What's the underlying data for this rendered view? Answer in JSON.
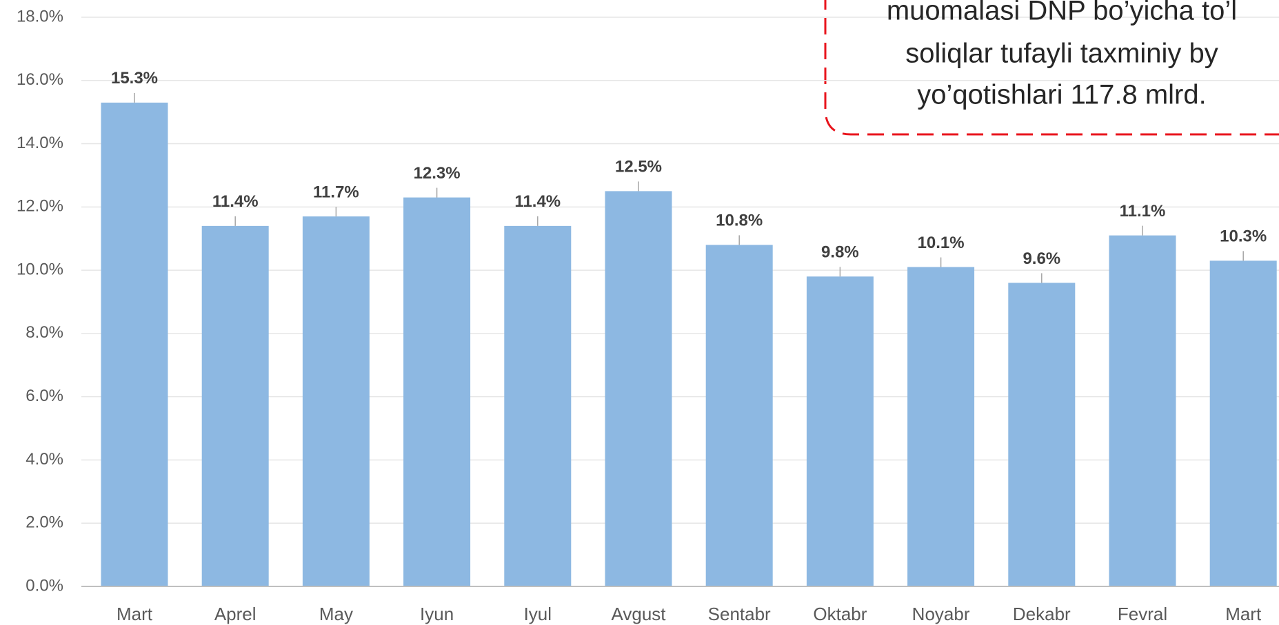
{
  "chart_data": {
    "type": "bar",
    "categories": [
      "Mart",
      "Aprel",
      "May",
      "Iyun",
      "Iyul",
      "Avgust",
      "Sentabr",
      "Oktabr",
      "Noyabr",
      "Dekabr",
      "Fevral",
      "Mart"
    ],
    "values": [
      15.3,
      11.4,
      11.7,
      12.3,
      11.4,
      12.5,
      10.8,
      9.8,
      10.1,
      9.6,
      11.1,
      10.3
    ],
    "value_labels": [
      "15.3%",
      "11.4%",
      "11.7%",
      "12.3%",
      "11.4%",
      "12.5%",
      "10.8%",
      "9.8%",
      "10.1%",
      "9.6%",
      "11.1%",
      "10.3%"
    ],
    "color": "#8db8e2",
    "ylim": [
      0,
      18
    ],
    "yticks": [
      {
        "value": 0,
        "label": "0.0%"
      },
      {
        "value": 2,
        "label": "2.0%"
      },
      {
        "value": 4,
        "label": "4.0%"
      },
      {
        "value": 6,
        "label": "6.0%"
      },
      {
        "value": 8,
        "label": "8.0%"
      },
      {
        "value": 10,
        "label": "10.0%"
      },
      {
        "value": 12,
        "label": "12.0%"
      },
      {
        "value": 14,
        "label": "14.0%"
      },
      {
        "value": 16,
        "label": "16.0%"
      },
      {
        "value": 18,
        "label": "18.0%"
      }
    ],
    "grid": true,
    "annotation": [
      "muomalasi DNP bo’yicha to’l",
      "soliqlar tufayli taxminiy by",
      "yo’qotishlari 117.8 mlrd."
    ]
  }
}
